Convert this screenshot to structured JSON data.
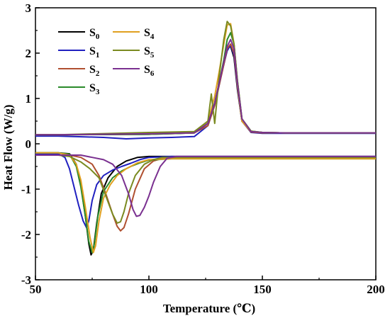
{
  "chart_data": {
    "type": "line",
    "title": "",
    "xlabel": "Temperature (℃)",
    "ylabel": "Heat Flow (W/g)",
    "xlim": [
      50,
      200
    ],
    "ylim": [
      -3,
      3
    ],
    "xticks": [
      "50",
      "100",
      "150",
      "200"
    ],
    "yticks": [
      "-3",
      "-2",
      "-1",
      "0",
      "1",
      "2",
      "3"
    ],
    "grid": false,
    "legend_position": "top-left",
    "series": [
      {
        "name": "S0",
        "label_base": "S",
        "label_sub": "0",
        "color": "#000000",
        "heating": {
          "x": [
            50,
            60,
            100,
            120,
            126,
            129,
            131,
            133,
            134.5,
            136,
            137.5,
            139,
            141,
            145,
            150,
            160,
            200
          ],
          "y": [
            0.2,
            0.2,
            0.21,
            0.24,
            0.45,
            0.9,
            1.35,
            1.75,
            2.1,
            2.15,
            1.9,
            1.2,
            0.5,
            0.27,
            0.25,
            0.24,
            0.24
          ]
        },
        "cooling": {
          "x": [
            50,
            60,
            65,
            68,
            70,
            72,
            73.5,
            74.5,
            75.5,
            77,
            79,
            82,
            86,
            90,
            95,
            100,
            110,
            130,
            200
          ],
          "y": [
            -0.2,
            -0.2,
            -0.22,
            -0.45,
            -0.9,
            -1.6,
            -2.2,
            -2.45,
            -2.35,
            -1.75,
            -1.1,
            -0.75,
            -0.5,
            -0.38,
            -0.3,
            -0.28,
            -0.28,
            -0.28,
            -0.28
          ]
        }
      },
      {
        "name": "S1",
        "label_base": "S",
        "label_sub": "1",
        "color": "#2020c0",
        "heating": {
          "x": [
            50,
            60,
            80,
            90,
            100,
            110,
            120,
            126,
            129,
            131,
            133,
            134.5,
            136,
            137.5,
            139,
            141,
            145,
            150,
            160,
            200
          ],
          "y": [
            0.17,
            0.17,
            0.14,
            0.11,
            0.13,
            0.14,
            0.16,
            0.4,
            0.85,
            1.3,
            1.75,
            2.05,
            2.18,
            1.95,
            1.25,
            0.5,
            0.25,
            0.23,
            0.23,
            0.23
          ]
        },
        "cooling": {
          "x": [
            50,
            60,
            63,
            65,
            67,
            69,
            71,
            72.5,
            73.5,
            75,
            77,
            80,
            84,
            88,
            92,
            96,
            100,
            110,
            200
          ],
          "y": [
            -0.22,
            -0.22,
            -0.3,
            -0.55,
            -0.95,
            -1.35,
            -1.7,
            -1.85,
            -1.7,
            -1.25,
            -0.9,
            -0.7,
            -0.58,
            -0.5,
            -0.43,
            -0.35,
            -0.3,
            -0.28,
            -0.28
          ]
        }
      },
      {
        "name": "S2",
        "label_base": "S",
        "label_sub": "2",
        "color": "#b05030",
        "heating": {
          "x": [
            50,
            60,
            100,
            120,
            126,
            129,
            131,
            133,
            134.5,
            136,
            137.5,
            139,
            141,
            145,
            150,
            160,
            200
          ],
          "y": [
            0.2,
            0.2,
            0.22,
            0.24,
            0.4,
            0.85,
            1.3,
            1.75,
            2.1,
            2.2,
            2.0,
            1.3,
            0.5,
            0.26,
            0.24,
            0.24,
            0.24
          ]
        },
        "cooling": {
          "x": [
            50,
            65,
            70,
            75,
            78,
            81,
            84,
            86,
            87.5,
            89,
            91,
            94,
            98,
            102,
            106,
            110,
            200
          ],
          "y": [
            -0.25,
            -0.25,
            -0.3,
            -0.45,
            -0.7,
            -1.1,
            -1.55,
            -1.82,
            -1.92,
            -1.85,
            -1.55,
            -1.0,
            -0.55,
            -0.38,
            -0.32,
            -0.3,
            -0.3
          ]
        }
      },
      {
        "name": "S3",
        "label_base": "S",
        "label_sub": "3",
        "color": "#2a8a2a",
        "heating": {
          "x": [
            50,
            60,
            100,
            120,
            126,
            129,
            131,
            133,
            134.5,
            136,
            137.5,
            139,
            141,
            145,
            150,
            160,
            200
          ],
          "y": [
            0.2,
            0.2,
            0.21,
            0.24,
            0.45,
            0.9,
            1.35,
            1.85,
            2.3,
            2.45,
            2.2,
            1.4,
            0.55,
            0.28,
            0.25,
            0.24,
            0.24
          ]
        },
        "cooling": {
          "x": [
            50,
            60,
            65,
            68,
            70,
            72,
            73.5,
            75,
            76,
            77.5,
            80,
            84,
            88,
            92,
            96,
            100,
            110,
            120,
            200
          ],
          "y": [
            -0.2,
            -0.2,
            -0.23,
            -0.5,
            -0.95,
            -1.6,
            -2.15,
            -2.4,
            -2.2,
            -1.6,
            -1.05,
            -0.75,
            -0.6,
            -0.5,
            -0.42,
            -0.36,
            -0.33,
            -0.33,
            -0.33
          ]
        }
      },
      {
        "name": "S4",
        "label_base": "S",
        "label_sub": "4",
        "color": "#e0a020",
        "heating": {
          "x": [
            50,
            60,
            100,
            120,
            126,
            129,
            131,
            133,
            134.5,
            136,
            137.5,
            139,
            141,
            145,
            150,
            160,
            200
          ],
          "y": [
            0.2,
            0.2,
            0.22,
            0.24,
            0.5,
            1.05,
            1.6,
            2.2,
            2.62,
            2.65,
            2.2,
            1.3,
            0.5,
            0.27,
            0.25,
            0.24,
            0.24
          ]
        },
        "cooling": {
          "x": [
            50,
            60,
            65,
            68,
            70,
            72,
            74,
            75.5,
            76.5,
            78,
            80,
            83,
            86,
            90,
            95,
            100,
            110,
            200
          ],
          "y": [
            -0.2,
            -0.2,
            -0.25,
            -0.45,
            -0.8,
            -1.4,
            -2.05,
            -2.4,
            -2.25,
            -1.7,
            -1.2,
            -0.9,
            -0.7,
            -0.55,
            -0.42,
            -0.35,
            -0.33,
            -0.33
          ]
        }
      },
      {
        "name": "S5",
        "label_base": "S",
        "label_sub": "5",
        "color": "#7a8a20",
        "heating": {
          "x": [
            50,
            60,
            100,
            120,
            126,
            127.5,
            129,
            131,
            133,
            134.5,
            136,
            137.5,
            139,
            141,
            145,
            150,
            160,
            200
          ],
          "y": [
            0.2,
            0.2,
            0.25,
            0.27,
            0.5,
            1.1,
            0.45,
            1.5,
            2.3,
            2.7,
            2.6,
            2.2,
            1.4,
            0.55,
            0.28,
            0.25,
            0.24,
            0.24
          ]
        },
        "cooling": {
          "x": [
            50,
            60,
            65,
            70,
            74,
            78,
            81,
            84,
            86,
            87.5,
            89,
            91,
            94,
            98,
            102,
            106,
            110,
            200
          ],
          "y": [
            -0.25,
            -0.25,
            -0.28,
            -0.4,
            -0.55,
            -0.75,
            -1.15,
            -1.55,
            -1.75,
            -1.72,
            -1.5,
            -1.1,
            -0.7,
            -0.45,
            -0.35,
            -0.3,
            -0.3,
            -0.3
          ]
        }
      },
      {
        "name": "S6",
        "label_base": "S",
        "label_sub": "6",
        "color": "#7a3090",
        "heating": {
          "x": [
            50,
            60,
            100,
            120,
            126,
            129,
            131,
            133,
            134.5,
            136,
            137.5,
            139,
            141,
            145,
            150,
            160,
            200
          ],
          "y": [
            0.2,
            0.2,
            0.22,
            0.24,
            0.45,
            0.9,
            1.35,
            1.8,
            2.15,
            2.3,
            2.1,
            1.35,
            0.55,
            0.27,
            0.25,
            0.24,
            0.24
          ]
        },
        "cooling": {
          "x": [
            50,
            70,
            75,
            80,
            84,
            88,
            91,
            93,
            94.5,
            96,
            98,
            100,
            102,
            105,
            108,
            112,
            200
          ],
          "y": [
            -0.25,
            -0.25,
            -0.3,
            -0.35,
            -0.45,
            -0.7,
            -1.1,
            -1.45,
            -1.6,
            -1.58,
            -1.4,
            -1.15,
            -0.85,
            -0.5,
            -0.32,
            -0.28,
            -0.28
          ]
        }
      }
    ]
  }
}
